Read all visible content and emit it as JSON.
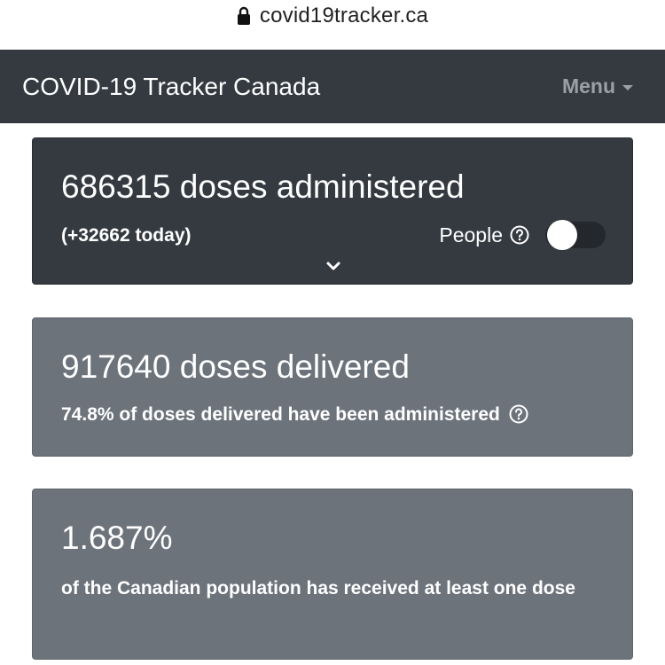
{
  "browser": {
    "url": "covid19tracker.ca"
  },
  "navbar": {
    "brand": "COVID-19 Tracker Canada",
    "menu_label": "Menu"
  },
  "cards": {
    "administered": {
      "headline": "686315 doses administered",
      "today": "(+32662 today)",
      "toggle_label": "People",
      "toggle_on": false
    },
    "delivered": {
      "headline": "917640 doses delivered",
      "subline": "74.8% of doses delivered have been administered"
    },
    "population": {
      "headline": "1.687%",
      "subline": "of the Canadian population has received at least one dose"
    }
  },
  "colors": {
    "navbar_bg": "#343a40",
    "card_dark": "#343a40",
    "card_gray": "#6c737b",
    "menu_text": "#9aa0a6"
  },
  "icons": [
    "lock-icon",
    "caret-down-icon",
    "help-circle-icon",
    "chevron-down-icon"
  ]
}
